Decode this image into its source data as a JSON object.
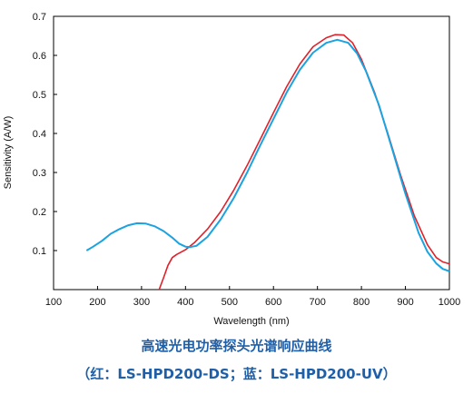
{
  "chart_data": {
    "type": "line",
    "title": "",
    "xlabel": "Wavelength (nm)",
    "ylabel": "Sensitivity (A/W)",
    "xlim": [
      100,
      1000
    ],
    "ylim": [
      0,
      0.7
    ],
    "xticks": [
      100,
      200,
      300,
      400,
      500,
      600,
      700,
      800,
      900,
      1000
    ],
    "yticks": [
      0.1,
      0.2,
      0.3,
      0.4,
      0.5,
      0.6,
      0.7
    ],
    "grid": false,
    "series": [
      {
        "color": "#e0202a",
        "points": [
          [
            340,
            0.0
          ],
          [
            350,
            0.03
          ],
          [
            360,
            0.062
          ],
          [
            370,
            0.082
          ],
          [
            380,
            0.09
          ],
          [
            400,
            0.102
          ],
          [
            420,
            0.12
          ],
          [
            450,
            0.155
          ],
          [
            480,
            0.2
          ],
          [
            510,
            0.255
          ],
          [
            540,
            0.318
          ],
          [
            570,
            0.385
          ],
          [
            600,
            0.453
          ],
          [
            630,
            0.52
          ],
          [
            660,
            0.578
          ],
          [
            690,
            0.622
          ],
          [
            720,
            0.645
          ],
          [
            740,
            0.653
          ],
          [
            760,
            0.652
          ],
          [
            780,
            0.632
          ],
          [
            800,
            0.59
          ],
          [
            830,
            0.505
          ],
          [
            860,
            0.4
          ],
          [
            890,
            0.29
          ],
          [
            920,
            0.19
          ],
          [
            950,
            0.115
          ],
          [
            970,
            0.082
          ],
          [
            985,
            0.071
          ],
          [
            1000,
            0.066
          ]
        ]
      },
      {
        "color": "#1aa3e0",
        "points": [
          [
            175,
            0.1
          ],
          [
            190,
            0.11
          ],
          [
            210,
            0.125
          ],
          [
            230,
            0.143
          ],
          [
            250,
            0.155
          ],
          [
            270,
            0.165
          ],
          [
            290,
            0.17
          ],
          [
            310,
            0.169
          ],
          [
            330,
            0.162
          ],
          [
            350,
            0.15
          ],
          [
            370,
            0.133
          ],
          [
            385,
            0.118
          ],
          [
            400,
            0.11
          ],
          [
            410,
            0.109
          ],
          [
            425,
            0.112
          ],
          [
            450,
            0.135
          ],
          [
            480,
            0.18
          ],
          [
            510,
            0.235
          ],
          [
            540,
            0.3
          ],
          [
            570,
            0.37
          ],
          [
            600,
            0.437
          ],
          [
            630,
            0.505
          ],
          [
            660,
            0.563
          ],
          [
            690,
            0.607
          ],
          [
            720,
            0.632
          ],
          [
            745,
            0.64
          ],
          [
            770,
            0.632
          ],
          [
            790,
            0.605
          ],
          [
            810,
            0.56
          ],
          [
            840,
            0.472
          ],
          [
            870,
            0.36
          ],
          [
            900,
            0.245
          ],
          [
            930,
            0.145
          ],
          [
            950,
            0.097
          ],
          [
            970,
            0.067
          ],
          [
            985,
            0.053
          ],
          [
            1000,
            0.047
          ]
        ]
      }
    ]
  },
  "caption": {
    "line1": "高速光电功率探头光谱响应曲线",
    "line2": "（红：LS-HPD200-DS；蓝：LS-HPD200-UV）"
  }
}
